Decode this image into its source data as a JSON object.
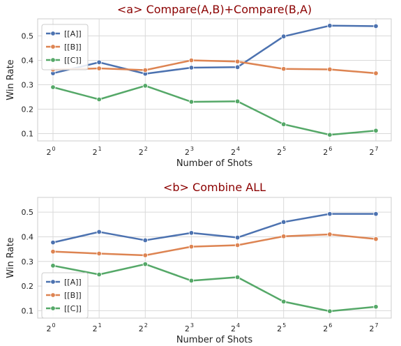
{
  "chart_data": [
    {
      "type": "line",
      "title": "<a> Compare(A,B)+Compare(B,A)",
      "xlabel": "Number of Shots",
      "ylabel": "Win Rate",
      "x": [
        {
          "base": "2",
          "exp": "0"
        },
        {
          "base": "2",
          "exp": "1"
        },
        {
          "base": "2",
          "exp": "2"
        },
        {
          "base": "2",
          "exp": "3"
        },
        {
          "base": "2",
          "exp": "4"
        },
        {
          "base": "2",
          "exp": "5"
        },
        {
          "base": "2",
          "exp": "6"
        },
        {
          "base": "2",
          "exp": "7"
        }
      ],
      "ylim": [
        0.07,
        0.57
      ],
      "yticks": [
        0.1,
        0.2,
        0.3,
        0.4,
        0.5
      ],
      "yticks_labels": [
        "0.1",
        "0.2",
        "0.3",
        "0.4",
        "0.5"
      ],
      "grid": true,
      "legend": "top-left",
      "series": [
        {
          "name": "[[A]]",
          "color": "#4c72b0",
          "values": [
            0.347,
            0.392,
            0.345,
            0.37,
            0.372,
            0.498,
            0.542,
            0.54
          ]
        },
        {
          "name": "[[B]]",
          "color": "#dd8452",
          "values": [
            0.362,
            0.367,
            0.36,
            0.4,
            0.395,
            0.365,
            0.363,
            0.347
          ]
        },
        {
          "name": "[[C]]",
          "color": "#55a868",
          "values": [
            0.29,
            0.24,
            0.296,
            0.23,
            0.232,
            0.138,
            0.095,
            0.112
          ]
        }
      ]
    },
    {
      "type": "line",
      "title": "<b> Combine ALL",
      "xlabel": "Number of Shots",
      "ylabel": "Win Rate",
      "x": [
        {
          "base": "2",
          "exp": "0"
        },
        {
          "base": "2",
          "exp": "1"
        },
        {
          "base": "2",
          "exp": "2"
        },
        {
          "base": "2",
          "exp": "3"
        },
        {
          "base": "2",
          "exp": "4"
        },
        {
          "base": "2",
          "exp": "5"
        },
        {
          "base": "2",
          "exp": "6"
        },
        {
          "base": "2",
          "exp": "7"
        }
      ],
      "ylim": [
        0.07,
        0.56
      ],
      "yticks": [
        0.1,
        0.2,
        0.3,
        0.4,
        0.5
      ],
      "yticks_labels": [
        "0.1",
        "0.2",
        "0.3",
        "0.4",
        "0.5"
      ],
      "grid": true,
      "legend": "bottom-left",
      "series": [
        {
          "name": "[[A]]",
          "color": "#4c72b0",
          "values": [
            0.377,
            0.42,
            0.386,
            0.416,
            0.397,
            0.46,
            0.493,
            0.493
          ]
        },
        {
          "name": "[[B]]",
          "color": "#dd8452",
          "values": [
            0.34,
            0.332,
            0.325,
            0.36,
            0.366,
            0.402,
            0.41,
            0.391
          ]
        },
        {
          "name": "[[C]]",
          "color": "#55a868",
          "values": [
            0.283,
            0.247,
            0.289,
            0.222,
            0.236,
            0.137,
            0.098,
            0.116
          ]
        }
      ]
    }
  ]
}
